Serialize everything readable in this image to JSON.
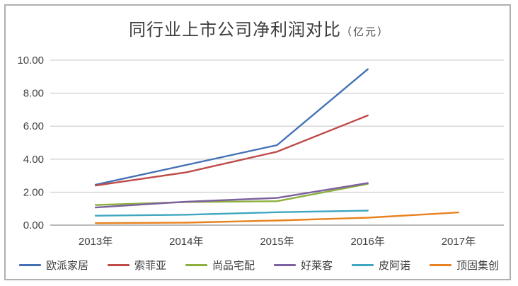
{
  "title": {
    "text": "同行业上市公司净利润对比",
    "unit": "（亿元）"
  },
  "chart_data": {
    "type": "line",
    "categories": [
      "2013年",
      "2014年",
      "2015年",
      "2016年",
      "2017年"
    ],
    "series": [
      {
        "name": "欧派家居",
        "color": "#4471B4",
        "values": [
          2.45,
          3.65,
          4.85,
          9.45,
          null
        ]
      },
      {
        "name": "索菲亚",
        "color": "#BE4B48",
        "values": [
          2.4,
          3.2,
          4.45,
          6.65,
          null
        ]
      },
      {
        "name": "尚品宅配",
        "color": "#8CAF3E",
        "values": [
          1.22,
          1.4,
          1.45,
          2.5,
          null
        ]
      },
      {
        "name": "好莱客",
        "color": "#7D60A0",
        "values": [
          1.07,
          1.42,
          1.65,
          2.55,
          null
        ]
      },
      {
        "name": "皮阿诺",
        "color": "#3EA6C0",
        "values": [
          0.57,
          0.63,
          0.78,
          0.88,
          null
        ]
      },
      {
        "name": "顶固集创",
        "color": "#E8821E",
        "values": [
          0.12,
          0.15,
          0.28,
          0.45,
          0.77
        ]
      }
    ],
    "title": "同行业上市公司净利润对比（亿元）",
    "xlabel": "",
    "ylabel": "",
    "ylim": [
      0,
      10
    ],
    "ytick_step": 2,
    "ytick_decimals": 2,
    "grid": true,
    "legend_position": "bottom"
  },
  "style": {
    "grid_color": "#c9c9c9",
    "axis_color": "#a3a3a3",
    "label_color": "#3f3f3f",
    "line_width": 2.4,
    "background": "#ffffff",
    "border_color": "#b0b0b0"
  }
}
